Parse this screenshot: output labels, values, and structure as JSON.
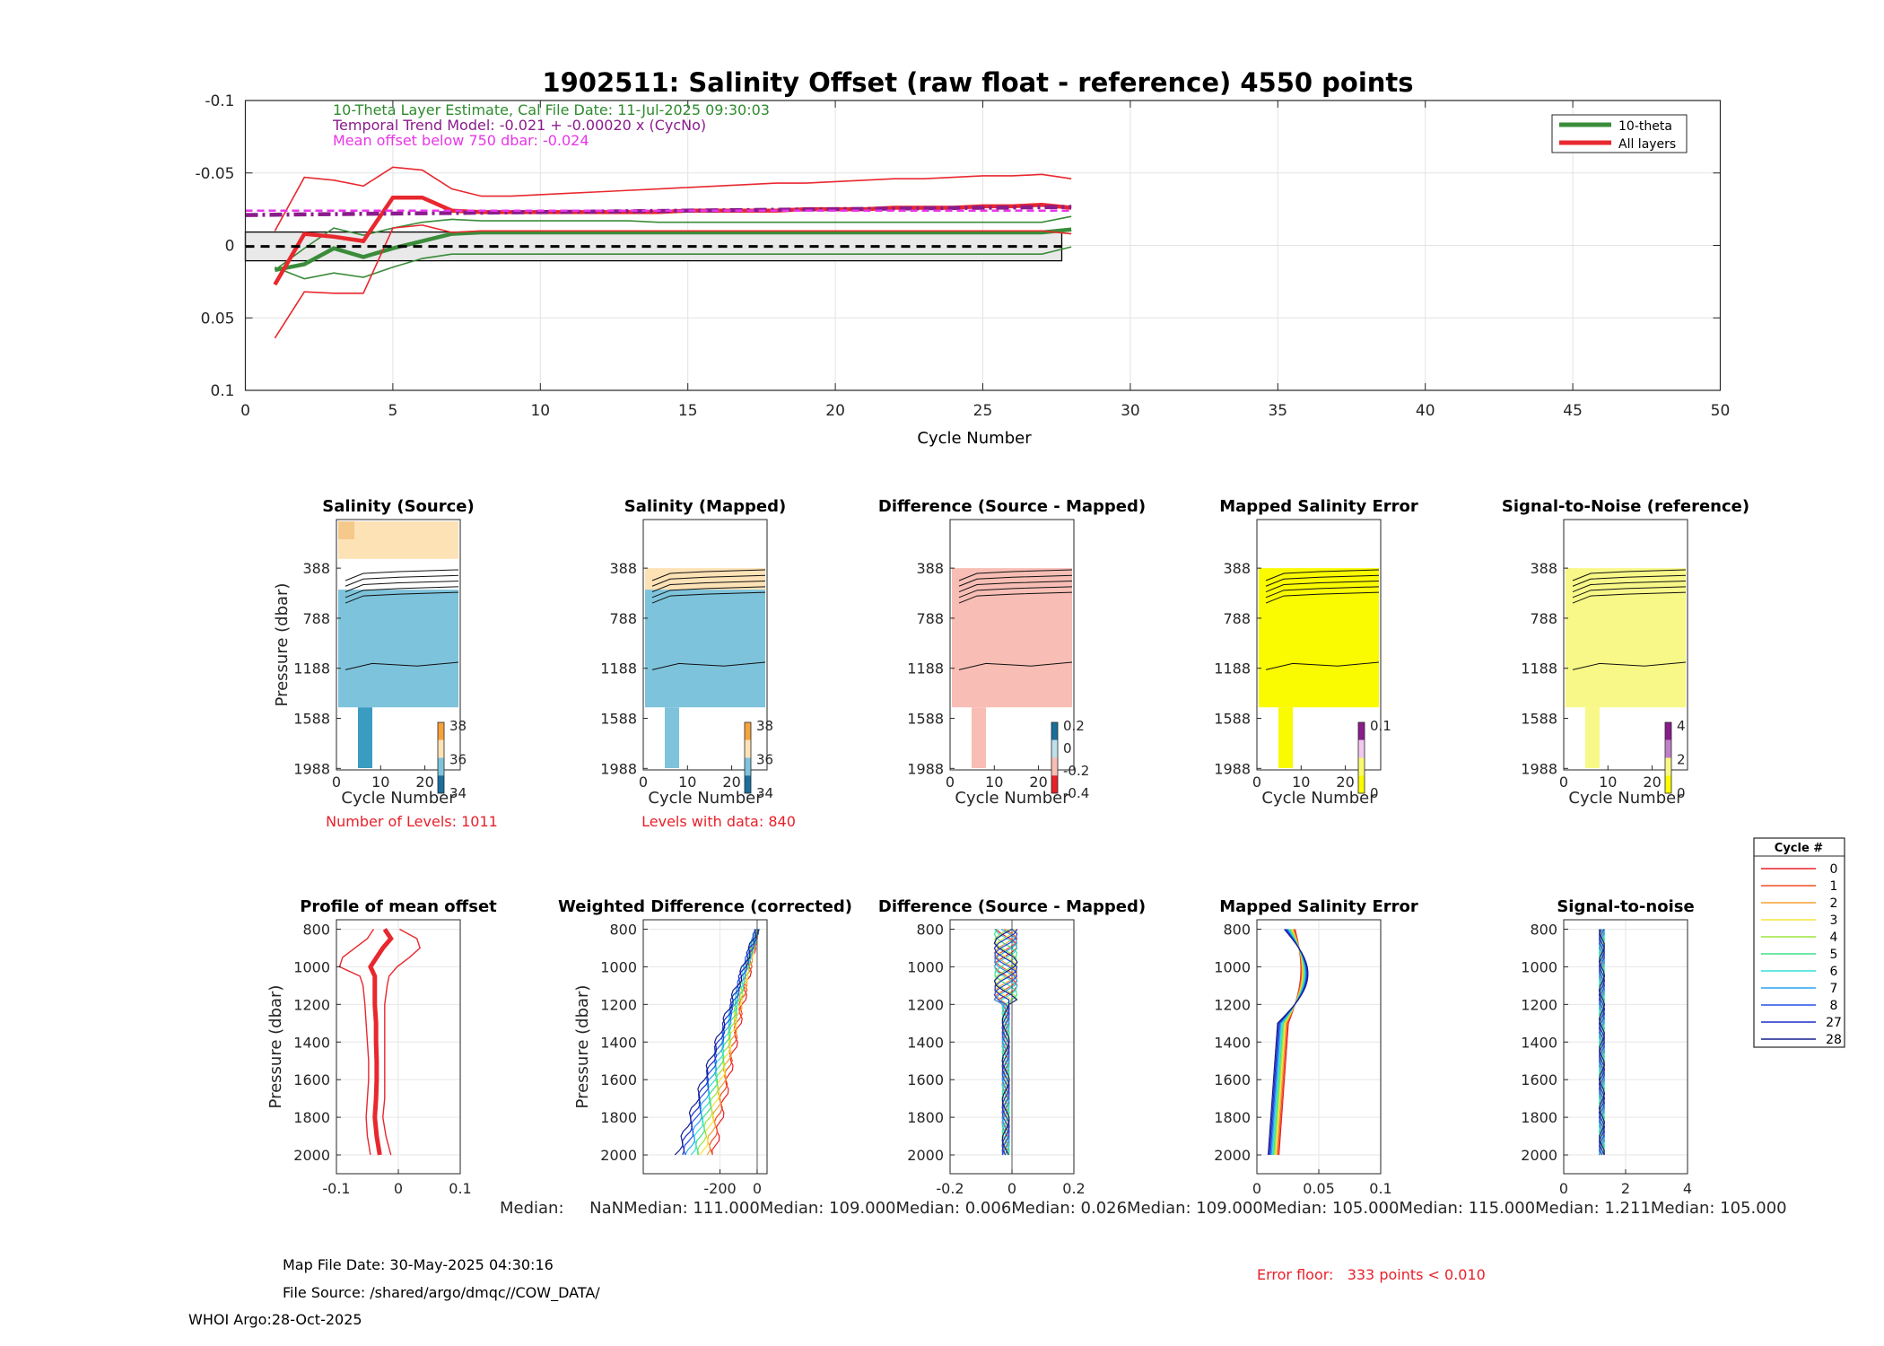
{
  "top": {
    "title": "1902511: Salinity Offset (raw float - reference)    4550 points",
    "info_green": "10-Theta Layer Estimate, Cal File Date: 11-Jul-2025 09:30:03",
    "info_purple": "Temporal Trend Model: -0.021 + -0.00020 x (CycNo)",
    "info_magenta": "Mean offset below 750 dbar: -0.024",
    "xlabel": "Cycle Number",
    "xticks": [
      0,
      5,
      10,
      15,
      20,
      25,
      30,
      35,
      40,
      45,
      50
    ],
    "yticks": [
      -0.1,
      -0.05,
      0,
      0.05,
      0.1
    ],
    "ytick_labels": [
      "-0.1",
      "-0.05",
      "0",
      "0.05",
      "0.1"
    ],
    "legend": [
      "10-theta",
      "All layers"
    ]
  },
  "contour_panels": [
    {
      "title": "Salinity (Source)",
      "cb_ticks": [
        "38",
        "36",
        "34"
      ],
      "note": "Number of Levels: 1011"
    },
    {
      "title": "Salinity (Mapped)",
      "cb_ticks": [
        "38",
        "36",
        "34"
      ],
      "note": "Levels with data: 840"
    },
    {
      "title": "Difference (Source - Mapped)",
      "cb_ticks": [
        "0.2",
        "0",
        "-0.2",
        "-0.4"
      ],
      "note": ""
    },
    {
      "title": "Mapped Salinity Error",
      "cb_ticks": [
        "0.1",
        "0"
      ],
      "note": ""
    },
    {
      "title": "Signal-to-Noise (reference)",
      "cb_ticks": [
        "4",
        "2",
        "0"
      ],
      "note": ""
    }
  ],
  "contour_common": {
    "ylabel": "Pressure (dbar)",
    "xlabel": "Cycle Number",
    "yticks": [
      "388",
      "788",
      "1188",
      "1588",
      "1988"
    ],
    "xticks": [
      "0",
      "10",
      "20"
    ]
  },
  "profile_panels": [
    {
      "title": "Profile of mean offset",
      "xticks": [
        "-0.1",
        "0",
        "0.1"
      ],
      "ylabel": "Pressure (dbar)"
    },
    {
      "title": "Weighted Difference (corrected)",
      "xticks": [
        "-200",
        "0"
      ],
      "ylabel": "Pressure (dbar)"
    },
    {
      "title": "Difference (Source - Mapped)",
      "xticks": [
        "-0.2",
        "0",
        "0.2"
      ],
      "ylabel": ""
    },
    {
      "title": "Mapped Salinity Error",
      "xticks": [
        "0",
        "0.05",
        "0.1"
      ],
      "ylabel": ""
    },
    {
      "title": "Signal-to-noise",
      "xticks": [
        "0",
        "2",
        "4"
      ],
      "ylabel": ""
    }
  ],
  "profile_yticks": [
    "800",
    "1000",
    "1200",
    "1400",
    "1600",
    "1800",
    "2000"
  ],
  "median_line": "Median:     NaNMedian: 111.000Median: 109.000Median: 0.006Median: 0.026Median: 109.000Median: 105.000Median: 115.000Median: 1.211Median: 105.000",
  "cycle_legend": {
    "title": "Cycle #",
    "entries": [
      {
        "label": "0",
        "color": "#e8202a"
      },
      {
        "label": "1",
        "color": "#f04e23"
      },
      {
        "label": "2",
        "color": "#f7a032"
      },
      {
        "label": "3",
        "color": "#f6e63a"
      },
      {
        "label": "4",
        "color": "#9be53a"
      },
      {
        "label": "5",
        "color": "#3fe08a"
      },
      {
        "label": "6",
        "color": "#33e0d8"
      },
      {
        "label": "7",
        "color": "#2aa3f0"
      },
      {
        "label": "8",
        "color": "#2450e8"
      },
      {
        "label": "27",
        "color": "#1d2fc8"
      },
      {
        "label": "28",
        "color": "#141e8c"
      }
    ]
  },
  "footer": {
    "map_date": "Map File Date: 30-May-2025 04:30:16",
    "file_source": "File Source: /shared/argo/dmqc//COW_DATA/",
    "whoi": "WHOI Argo:28-Oct-2025",
    "error_floor": "Error floor:   333 points < 0.010"
  },
  "chart_data": [
    {
      "type": "line",
      "title": "1902511: Salinity Offset (raw float - reference)    4550 points",
      "xlabel": "Cycle Number",
      "xlim": [
        0,
        50
      ],
      "ylim": [
        -0.1,
        0.1
      ],
      "y_reversed": true,
      "x": [
        1,
        2,
        3,
        4,
        5,
        6,
        7,
        8,
        9,
        10,
        11,
        12,
        13,
        14,
        15,
        16,
        17,
        18,
        19,
        20,
        21,
        22,
        23,
        24,
        25,
        26,
        27,
        28
      ],
      "series": [
        {
          "name": "10-theta",
          "color": "#3a8c3a",
          "values": [
            0.017,
            0.013,
            0.002,
            0.008,
            0.002,
            -0.003,
            -0.008,
            -0.009,
            -0.009,
            -0.009,
            -0.009,
            -0.009,
            -0.009,
            -0.009,
            -0.009,
            -0.009,
            -0.009,
            -0.009,
            -0.009,
            -0.009,
            -0.009,
            -0.009,
            -0.009,
            -0.009,
            -0.009,
            -0.009,
            -0.009,
            -0.011
          ]
        },
        {
          "name": "10-theta upper",
          "color": "#3a8c3a",
          "values": [
            0.015,
            0.023,
            0.019,
            0.022,
            0.015,
            0.009,
            0.006,
            0.006,
            0.006,
            0.006,
            0.006,
            0.006,
            0.006,
            0.006,
            0.006,
            0.006,
            0.006,
            0.006,
            0.006,
            0.006,
            0.006,
            0.006,
            0.006,
            0.006,
            0.006,
            0.006,
            0.006,
            0.001
          ]
        },
        {
          "name": "10-theta lower",
          "color": "#3a8c3a",
          "values": [
            0.017,
            0.002,
            -0.012,
            -0.007,
            -0.012,
            -0.016,
            -0.018,
            -0.017,
            -0.017,
            -0.017,
            -0.017,
            -0.017,
            -0.017,
            -0.016,
            -0.016,
            -0.016,
            -0.016,
            -0.016,
            -0.016,
            -0.016,
            -0.016,
            -0.016,
            -0.016,
            -0.016,
            -0.016,
            -0.016,
            -0.016,
            -0.02
          ]
        },
        {
          "name": "All layers",
          "color": "#e8282e",
          "values": [
            0.027,
            -0.008,
            -0.006,
            -0.003,
            -0.033,
            -0.033,
            -0.024,
            -0.023,
            -0.023,
            -0.023,
            -0.023,
            -0.023,
            -0.023,
            -0.023,
            -0.024,
            -0.024,
            -0.024,
            -0.024,
            -0.025,
            -0.025,
            -0.025,
            -0.026,
            -0.026,
            -0.026,
            -0.027,
            -0.027,
            -0.028,
            -0.026
          ]
        },
        {
          "name": "All layers upper",
          "color": "#e8282e",
          "values": [
            -0.01,
            -0.047,
            -0.045,
            -0.041,
            -0.054,
            -0.052,
            -0.039,
            -0.034,
            -0.034,
            -0.035,
            -0.036,
            -0.037,
            -0.038,
            -0.039,
            -0.04,
            -0.041,
            -0.042,
            -0.043,
            -0.043,
            -0.044,
            -0.045,
            -0.046,
            -0.046,
            -0.047,
            -0.048,
            -0.048,
            -0.049,
            -0.046
          ]
        },
        {
          "name": "All layers lower",
          "color": "#e8282e",
          "values": [
            0.064,
            0.032,
            0.033,
            0.033,
            -0.012,
            -0.014,
            -0.009,
            -0.01,
            -0.01,
            -0.01,
            -0.01,
            -0.01,
            -0.01,
            -0.01,
            -0.01,
            -0.01,
            -0.01,
            -0.01,
            -0.01,
            -0.01,
            -0.01,
            -0.01,
            -0.01,
            -0.01,
            -0.01,
            -0.01,
            -0.01,
            -0.008
          ]
        },
        {
          "name": "Temporal trend",
          "color": "#8a1c8c",
          "values": [
            -0.0212,
            -0.0214,
            -0.0216,
            -0.0218,
            -0.022,
            -0.0222,
            -0.0224,
            -0.0226,
            -0.0228,
            -0.023,
            -0.0232,
            -0.0234,
            -0.0236,
            -0.0238,
            -0.024,
            -0.0242,
            -0.0244,
            -0.0246,
            -0.0248,
            -0.025,
            -0.0252,
            -0.0254,
            -0.0256,
            -0.0258,
            -0.026,
            -0.0262,
            -0.0264,
            -0.0266
          ]
        },
        {
          "name": "Mean offset below 750 dbar",
          "color": "#e836e8",
          "values": [
            -0.024,
            -0.024,
            -0.024,
            -0.024,
            -0.024,
            -0.024,
            -0.024,
            -0.024,
            -0.024,
            -0.024,
            -0.024,
            -0.024,
            -0.024,
            -0.024,
            -0.024,
            -0.024,
            -0.024,
            -0.024,
            -0.024,
            -0.024,
            -0.024,
            -0.024,
            -0.024,
            -0.024,
            -0.024,
            -0.024,
            -0.024,
            -0.024
          ]
        }
      ],
      "band": {
        "x": [
          0,
          28
        ],
        "y": [
          -0.01,
          0.01
        ]
      }
    },
    {
      "type": "line",
      "title": "Profile of mean offset",
      "xlim": [
        -0.1,
        0.1
      ],
      "ylim": [
        750,
        2100
      ],
      "pressure": [
        800,
        850,
        900,
        950,
        1000,
        1050,
        1100,
        1200,
        1300,
        1400,
        1500,
        1600,
        1700,
        1800,
        1900,
        2000
      ],
      "mean": [
        -0.022,
        -0.012,
        -0.025,
        -0.035,
        -0.045,
        -0.038,
        -0.038,
        -0.038,
        -0.036,
        -0.036,
        -0.035,
        -0.035,
        -0.036,
        -0.038,
        -0.035,
        -0.03
      ],
      "upper": [
        0.002,
        0.03,
        0.035,
        0.018,
        -0.002,
        -0.015,
        -0.018,
        -0.022,
        -0.022,
        -0.022,
        -0.022,
        -0.022,
        -0.022,
        -0.025,
        -0.02,
        -0.012
      ],
      "lower": [
        -0.04,
        -0.05,
        -0.07,
        -0.09,
        -0.095,
        -0.062,
        -0.057,
        -0.054,
        -0.052,
        -0.05,
        -0.048,
        -0.048,
        -0.05,
        -0.052,
        -0.05,
        -0.045
      ]
    }
  ]
}
